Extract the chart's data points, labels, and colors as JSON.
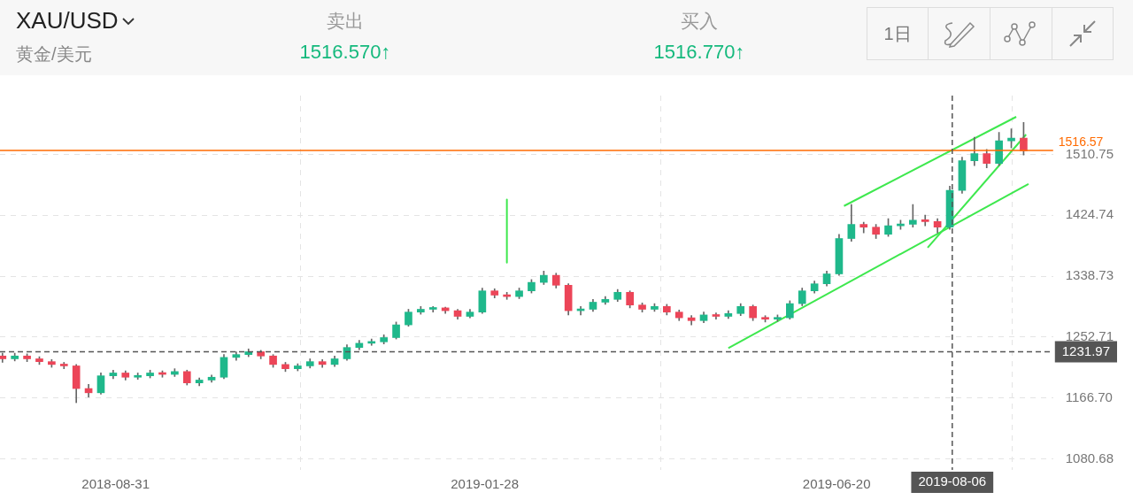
{
  "chart_data": {
    "type": "candlestick",
    "title": "XAU/USD",
    "subtitle": "黄金/美元",
    "annotations": [
      "卖出",
      "1516.570↑",
      "买入",
      "1516.770↑",
      "1日"
    ],
    "x": [
      "2018-07-16",
      "2018-07-21",
      "2018-07-26",
      "2018-07-31",
      "2018-08-05",
      "2018-08-10",
      "2018-08-15",
      "2018-08-20",
      "2018-08-25",
      "2018-08-30",
      "2018-09-04",
      "2018-09-09",
      "2018-09-14",
      "2018-09-19",
      "2018-09-24",
      "2018-09-29",
      "2018-10-04",
      "2018-10-09",
      "2018-10-14",
      "2018-10-19",
      "2018-10-24",
      "2018-10-29",
      "2018-11-03",
      "2018-11-08",
      "2018-11-13",
      "2018-11-18",
      "2018-11-23",
      "2018-11-28",
      "2018-12-03",
      "2018-12-08",
      "2018-12-13",
      "2018-12-18",
      "2018-12-23",
      "2018-12-28",
      "2019-01-02",
      "2019-01-07",
      "2019-01-12",
      "2019-01-17",
      "2019-01-22",
      "2019-01-27",
      "2019-02-01",
      "2019-02-06",
      "2019-02-11",
      "2019-02-16",
      "2019-02-21",
      "2019-02-26",
      "2019-03-03",
      "2019-03-08",
      "2019-03-13",
      "2019-03-18",
      "2019-03-23",
      "2019-03-28",
      "2019-04-02",
      "2019-04-07",
      "2019-04-12",
      "2019-04-17",
      "2019-04-22",
      "2019-04-27",
      "2019-05-02",
      "2019-05-07",
      "2019-05-12",
      "2019-05-17",
      "2019-05-22",
      "2019-05-27",
      "2019-06-01",
      "2019-06-06",
      "2019-06-11",
      "2019-06-16",
      "2019-06-21",
      "2019-06-26",
      "2019-07-01",
      "2019-07-06",
      "2019-07-11",
      "2019-07-16",
      "2019-07-21",
      "2019-07-26",
      "2019-07-31",
      "2019-08-05",
      "2019-08-10",
      "2019-08-15",
      "2019-08-20",
      "2019-08-25",
      "2019-08-30",
      "2019-09-04"
    ],
    "ohlc": [
      [
        1226,
        1230,
        1217,
        1222
      ],
      [
        1222,
        1230,
        1219,
        1226
      ],
      [
        1226,
        1229,
        1218,
        1222
      ],
      [
        1222,
        1225,
        1214,
        1218
      ],
      [
        1218,
        1221,
        1210,
        1214
      ],
      [
        1214,
        1217,
        1208,
        1212
      ],
      [
        1212,
        1214,
        1160,
        1180
      ],
      [
        1180,
        1186,
        1168,
        1174
      ],
      [
        1174,
        1202,
        1172,
        1198
      ],
      [
        1198,
        1206,
        1194,
        1202
      ],
      [
        1202,
        1205,
        1192,
        1196
      ],
      [
        1196,
        1202,
        1193,
        1198
      ],
      [
        1198,
        1206,
        1195,
        1202
      ],
      [
        1202,
        1205,
        1196,
        1200
      ],
      [
        1200,
        1208,
        1197,
        1204
      ],
      [
        1204,
        1206,
        1185,
        1188
      ],
      [
        1188,
        1195,
        1184,
        1192
      ],
      [
        1192,
        1199,
        1189,
        1196
      ],
      [
        1196,
        1228,
        1194,
        1224
      ],
      [
        1224,
        1232,
        1220,
        1228
      ],
      [
        1228,
        1236,
        1225,
        1232
      ],
      [
        1232,
        1234,
        1222,
        1226
      ],
      [
        1226,
        1228,
        1210,
        1214
      ],
      [
        1214,
        1217,
        1204,
        1208
      ],
      [
        1208,
        1215,
        1205,
        1212
      ],
      [
        1212,
        1222,
        1209,
        1218
      ],
      [
        1218,
        1221,
        1210,
        1214
      ],
      [
        1214,
        1226,
        1211,
        1222
      ],
      [
        1222,
        1242,
        1220,
        1238
      ],
      [
        1238,
        1248,
        1235,
        1244
      ],
      [
        1244,
        1250,
        1241,
        1246
      ],
      [
        1246,
        1256,
        1243,
        1252
      ],
      [
        1252,
        1274,
        1250,
        1270
      ],
      [
        1270,
        1292,
        1268,
        1288
      ],
      [
        1288,
        1296,
        1285,
        1292
      ],
      [
        1292,
        1296,
        1288,
        1294
      ],
      [
        1294,
        1295,
        1286,
        1290
      ],
      [
        1290,
        1292,
        1278,
        1282
      ],
      [
        1282,
        1292,
        1280,
        1288
      ],
      [
        1288,
        1322,
        1286,
        1318
      ],
      [
        1318,
        1321,
        1308,
        1312
      ],
      [
        1312,
        1316,
        1306,
        1310
      ],
      [
        1310,
        1322,
        1307,
        1318
      ],
      [
        1318,
        1334,
        1315,
        1330
      ],
      [
        1330,
        1346,
        1327,
        1340
      ],
      [
        1340,
        1343,
        1322,
        1326
      ],
      [
        1326,
        1328,
        1284,
        1290
      ],
      [
        1290,
        1296,
        1284,
        1292
      ],
      [
        1292,
        1306,
        1289,
        1302
      ],
      [
        1302,
        1310,
        1299,
        1306
      ],
      [
        1306,
        1320,
        1303,
        1316
      ],
      [
        1316,
        1318,
        1294,
        1298
      ],
      [
        1298,
        1301,
        1288,
        1292
      ],
      [
        1292,
        1300,
        1289,
        1296
      ],
      [
        1296,
        1299,
        1284,
        1288
      ],
      [
        1288,
        1291,
        1276,
        1280
      ],
      [
        1280,
        1283,
        1270,
        1276
      ],
      [
        1276,
        1288,
        1273,
        1284
      ],
      [
        1284,
        1287,
        1278,
        1282
      ],
      [
        1282,
        1290,
        1279,
        1286
      ],
      [
        1286,
        1300,
        1283,
        1296
      ],
      [
        1296,
        1298,
        1276,
        1280
      ],
      [
        1280,
        1283,
        1274,
        1278
      ],
      [
        1278,
        1284,
        1275,
        1280
      ],
      [
        1280,
        1304,
        1278,
        1300
      ],
      [
        1300,
        1322,
        1297,
        1318
      ],
      [
        1318,
        1332,
        1315,
        1328
      ],
      [
        1328,
        1346,
        1325,
        1342
      ],
      [
        1342,
        1398,
        1340,
        1392
      ],
      [
        1392,
        1440,
        1388,
        1412
      ],
      [
        1412,
        1415,
        1400,
        1408
      ],
      [
        1408,
        1412,
        1392,
        1398
      ],
      [
        1398,
        1420,
        1395,
        1410
      ],
      [
        1410,
        1418,
        1405,
        1412
      ],
      [
        1412,
        1440,
        1408,
        1418
      ],
      [
        1418,
        1425,
        1410,
        1416
      ],
      [
        1416,
        1420,
        1400,
        1408
      ],
      [
        1408,
        1466,
        1405,
        1460
      ],
      [
        1460,
        1507,
        1456,
        1502
      ],
      [
        1502,
        1535,
        1495,
        1512
      ],
      [
        1512,
        1518,
        1492,
        1498
      ],
      [
        1498,
        1542,
        1495,
        1530
      ],
      [
        1530,
        1547,
        1520,
        1534
      ],
      [
        1534,
        1556,
        1510,
        1516
      ]
    ],
    "series": [
      {
        "type": "line",
        "x": [
          "2019-06-23",
          "2019-09-01"
        ],
        "values": [
          1438,
          1564
        ],
        "color": "#3ee84e"
      },
      {
        "type": "line",
        "x": [
          "2019-05-07",
          "2019-09-06"
        ],
        "values": [
          1237,
          1469
        ],
        "color": "#3ee84e"
      },
      {
        "type": "line",
        "x": [
          "2019-07-27",
          "2019-09-05"
        ],
        "values": [
          1379,
          1539
        ],
        "color": "#3ee84e"
      },
      {
        "type": "line",
        "x": [
          "2019-02-06",
          "2019-02-06"
        ],
        "values": [
          1447,
          1358
        ],
        "color": "#3ee84e"
      }
    ],
    "xlim": [
      "2018-07-15",
      "2019-09-16"
    ],
    "xticks": [
      "2018-08-31",
      "2019-01-28",
      "2019-06-20"
    ],
    "ylim": [
      1065,
      1594
    ],
    "yticks": [
      1080.68,
      {
        "value": 1166.7,
        "label": "1166.70"
      },
      1252.71,
      1338.73,
      1424.74,
      1510.75
    ],
    "grid": true,
    "ref_lines": [
      {
        "axis": "y",
        "value": 1516.57,
        "label": "1516.57",
        "color": "#ff6a00",
        "line_style": "solid"
      },
      {
        "axis": "y",
        "value": 1231.97,
        "label": "1231.97",
        "color": "#555555",
        "line_style": "dashed"
      },
      {
        "axis": "x",
        "value": "2019-08-06",
        "label": "2019-08-06",
        "color": "#555555",
        "line_style": "dashed"
      }
    ]
  }
}
